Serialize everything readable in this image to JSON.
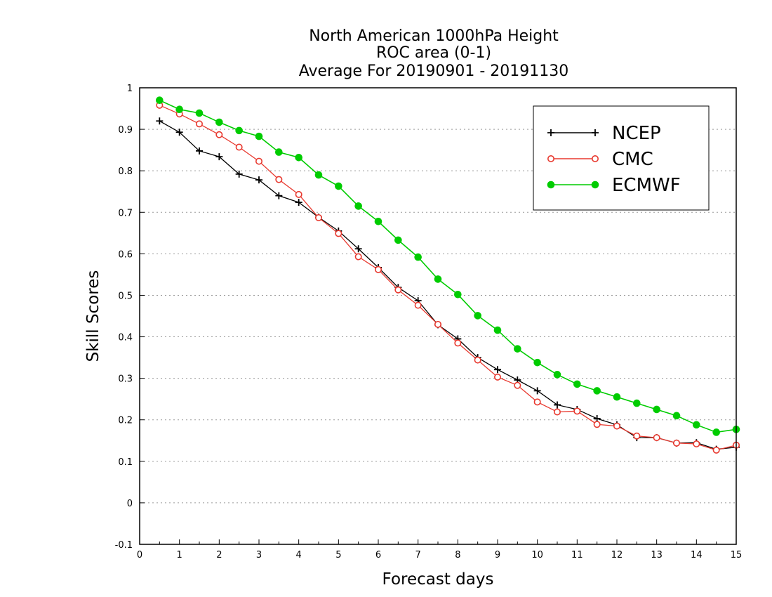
{
  "chart_data": {
    "type": "line",
    "title": [
      "North American 1000hPa Height",
      "ROC area (0-1)",
      "Average For 20190901 - 20191130"
    ],
    "xlabel": "Forecast days",
    "ylabel": "Skill Scores",
    "xlim": [
      0,
      15
    ],
    "ylim": [
      -0.1,
      1
    ],
    "xticks": [
      "0",
      "1",
      "2",
      "3",
      "4",
      "5",
      "6",
      "7",
      "8",
      "9",
      "10",
      "11",
      "12",
      "13",
      "14",
      "15"
    ],
    "yticks": [
      "1",
      "0.9",
      "0.8",
      "0.7",
      "0.6",
      "0.5",
      "0.4",
      "0.3",
      "0.2",
      "0.1",
      "0",
      "-0.1"
    ],
    "grid": true,
    "legend_position": "top-right",
    "x": [
      0.5,
      1,
      1.5,
      2,
      2.5,
      3,
      3.5,
      4,
      4.5,
      5,
      5.5,
      6,
      6.5,
      7,
      7.5,
      8,
      8.5,
      9,
      9.5,
      10,
      10.5,
      11,
      11.5,
      12,
      12.5,
      13,
      13.5,
      14,
      14.5,
      15
    ],
    "series": [
      {
        "name": "NCEP",
        "color": "#000000",
        "marker": "plus",
        "values": [
          0.92,
          0.893,
          0.848,
          0.834,
          0.792,
          0.778,
          0.74,
          0.724,
          0.688,
          0.655,
          0.612,
          0.567,
          0.519,
          0.487,
          0.429,
          0.395,
          0.35,
          0.321,
          0.296,
          0.27,
          0.236,
          0.225,
          0.203,
          0.188,
          0.157,
          0.157,
          0.144,
          0.145,
          0.129,
          0.134
        ]
      },
      {
        "name": "CMC",
        "color": "#e8392f",
        "marker": "open-circle",
        "values": [
          0.958,
          0.937,
          0.913,
          0.887,
          0.857,
          0.823,
          0.779,
          0.743,
          0.687,
          0.649,
          0.593,
          0.562,
          0.513,
          0.476,
          0.43,
          0.385,
          0.344,
          0.303,
          0.283,
          0.243,
          0.219,
          0.221,
          0.189,
          0.185,
          0.161,
          0.157,
          0.144,
          0.142,
          0.127,
          0.139
        ]
      },
      {
        "name": "ECMWF",
        "color": "#00cc00",
        "marker": "filled-circle",
        "values": [
          0.97,
          0.948,
          0.939,
          0.917,
          0.897,
          0.883,
          0.845,
          0.832,
          0.79,
          0.763,
          0.715,
          0.678,
          0.633,
          0.592,
          0.539,
          0.502,
          0.451,
          0.416,
          0.371,
          0.338,
          0.309,
          0.286,
          0.27,
          0.255,
          0.24,
          0.225,
          0.21,
          0.188,
          0.17,
          0.177
        ]
      }
    ]
  }
}
